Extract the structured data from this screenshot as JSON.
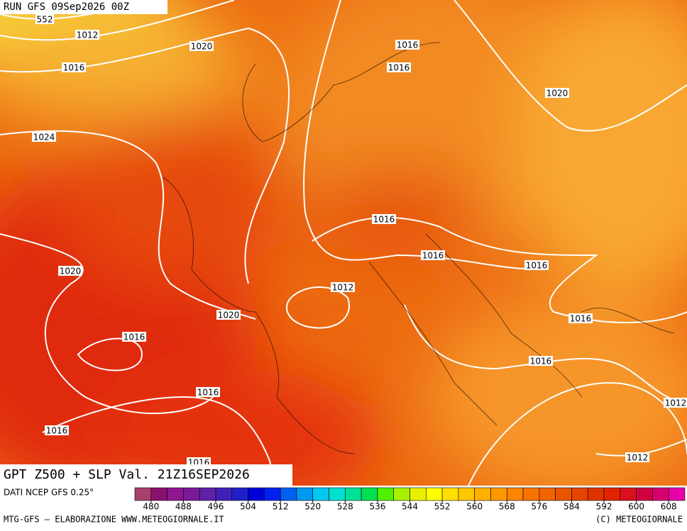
{
  "header": {
    "run": "RUN GFS 09Sep2026 00Z"
  },
  "map": {
    "contour_labels": [
      "552",
      "1012",
      "1016",
      "1020",
      "1024",
      "1016",
      "1016",
      "1020",
      "1016",
      "1016",
      "1016",
      "1012",
      "1020",
      "1020",
      "1016",
      "1016",
      "1016",
      "1016",
      "1016",
      "1016",
      "1012",
      "1012"
    ]
  },
  "footer": {
    "title": "GPT Z500 + SLP Val. 21Z16SEP2026",
    "source": "DATI NCEP GFS 0.25°",
    "credit": "MTG-GFS — ELABORAZIONE WWW.METEOGIORNALE.IT",
    "copyright": "(C) METEOGIORNALE"
  },
  "colorbar": {
    "ticks": [
      480,
      488,
      496,
      504,
      512,
      520,
      528,
      536,
      544,
      552,
      560,
      568,
      576,
      584,
      592,
      600,
      608
    ],
    "colors": [
      "#a8406c",
      "#8a1070",
      "#901590",
      "#7a1a9a",
      "#6020a8",
      "#4020b8",
      "#2020c8",
      "#0000d8",
      "#0020f0",
      "#0060f0",
      "#0098f0",
      "#00c8f0",
      "#00e0d0",
      "#00e098",
      "#00e050",
      "#50f000",
      "#a8f000",
      "#e8f000",
      "#ffff00",
      "#ffe000",
      "#ffc800",
      "#ffb000",
      "#ff9800",
      "#ff8400",
      "#f87400",
      "#f06400",
      "#e85400",
      "#e44400",
      "#e03400",
      "#e02400",
      "#d81020",
      "#d00040",
      "#d80070",
      "#e800a8"
    ]
  }
}
